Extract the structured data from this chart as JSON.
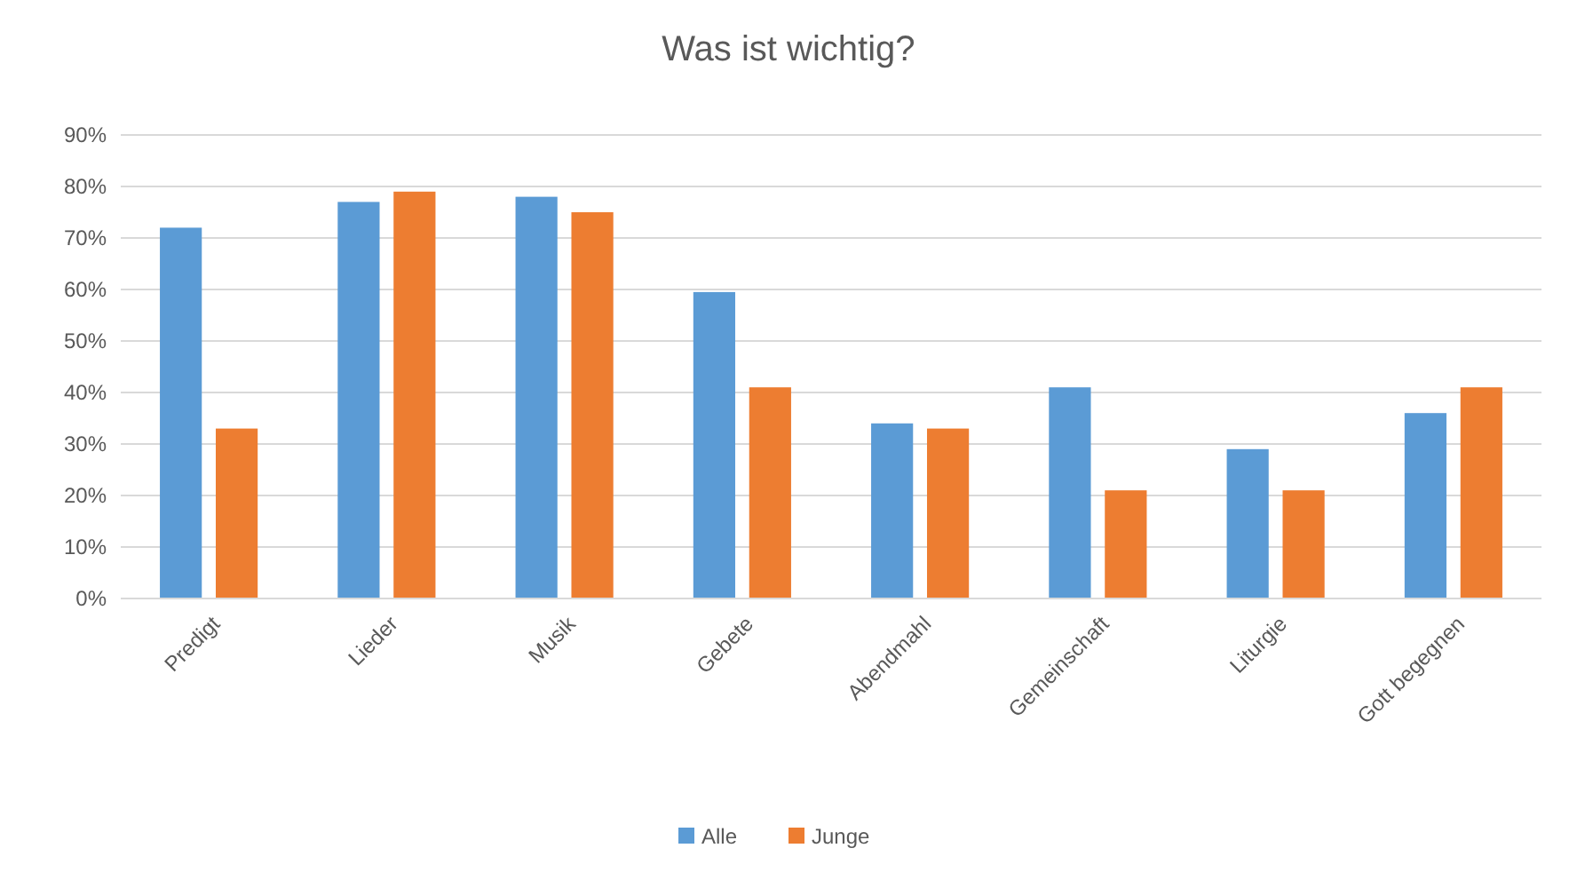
{
  "chart_data": {
    "type": "bar",
    "title": "Was ist wichtig?",
    "categories": [
      "Predigt",
      "Lieder",
      "Musik",
      "Gebete",
      "Abendmahl",
      "Gemeinschaft",
      "Liturgie",
      "Gott begegnen"
    ],
    "series": [
      {
        "name": "Alle",
        "color": "#5b9bd5",
        "values": [
          72,
          77,
          78,
          59.5,
          34,
          41,
          29,
          36
        ]
      },
      {
        "name": "Junge",
        "color": "#ed7d31",
        "values": [
          33,
          79,
          75,
          41,
          33,
          21,
          21,
          41
        ]
      }
    ],
    "ylim": [
      0,
      90
    ],
    "yticks": [
      {
        "value": 0,
        "label": "0%"
      },
      {
        "value": 10,
        "label": "10%"
      },
      {
        "value": 20,
        "label": "20%"
      },
      {
        "value": 30,
        "label": "30%"
      },
      {
        "value": 40,
        "label": "40%"
      },
      {
        "value": 50,
        "label": "50%"
      },
      {
        "value": 60,
        "label": "60%"
      },
      {
        "value": 70,
        "label": "70%"
      },
      {
        "value": 80,
        "label": "80%"
      },
      {
        "value": 90,
        "label": "90%"
      }
    ],
    "grid": "y",
    "legend": "bottom"
  }
}
